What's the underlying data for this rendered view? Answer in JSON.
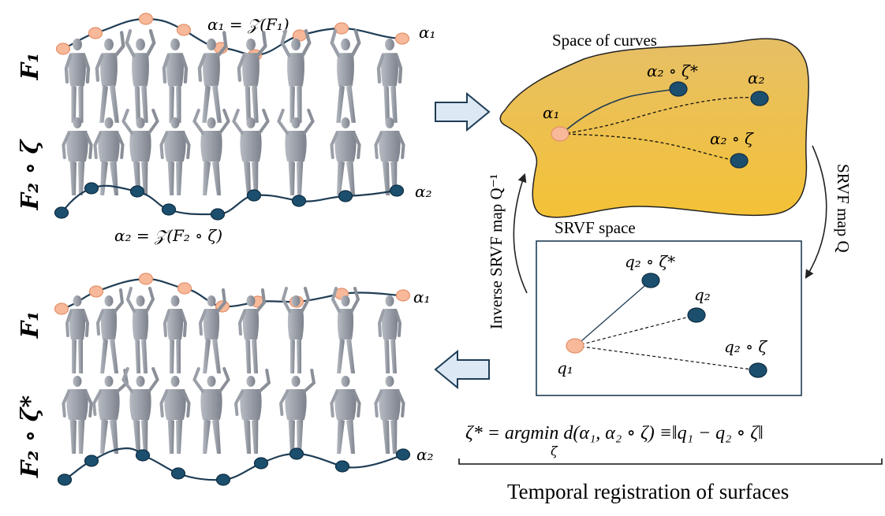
{
  "row_labels": {
    "top_f1": "F₁",
    "top_f2": "F₂ ∘ ζ",
    "bottom_f1": "F₁",
    "bottom_f2": "F₂ ∘ ζ*"
  },
  "curve_labels": {
    "alpha1_eq": "α₁ = 𝒵(F₁)",
    "alpha1": "α₁",
    "alpha2": "α₂",
    "alpha2_eq": "α₂ = 𝒵(F₂ ∘ ζ)",
    "bottom_alpha1": "α₁",
    "bottom_alpha2": "α₂"
  },
  "space_of_curves": {
    "title": "Space of curves",
    "alpha1": "α₁",
    "alpha2_star": "α₂ ∘ ζ*",
    "alpha2": "α₂",
    "alpha2_zeta": "α₂ ∘ ζ"
  },
  "srvf_space": {
    "title": "SRVF space",
    "q1": "q₁",
    "q2_star": "q₂ ∘ ζ*",
    "q2": "q₂",
    "q2_zeta": "q₂ ∘ ζ"
  },
  "maps": {
    "srvf_map": "SRVF map Q",
    "inverse_map": "Inverse SRVF map Q⁻¹"
  },
  "equation": "ζ* = argmin d(α₁, α₂ ∘ ζ) ≡‖q₁ − q₂ ∘ ζ‖",
  "equation_subscript": "ζ",
  "caption": "Temporal registration of surfaces",
  "colors": {
    "orange_node": "#f7b99a",
    "teal_node": "#1c4f6e",
    "curve": "#1f3d55",
    "blob_top": "#e8c25a",
    "blob_bottom": "#f3c237",
    "arrow_fill": "#dde8f5",
    "arrow_stroke": "#1f3d55",
    "figure": "#9ea3ab"
  },
  "icons": {
    "human_figure": "human-figure-icon",
    "block_arrow": "block-arrow-icon"
  }
}
